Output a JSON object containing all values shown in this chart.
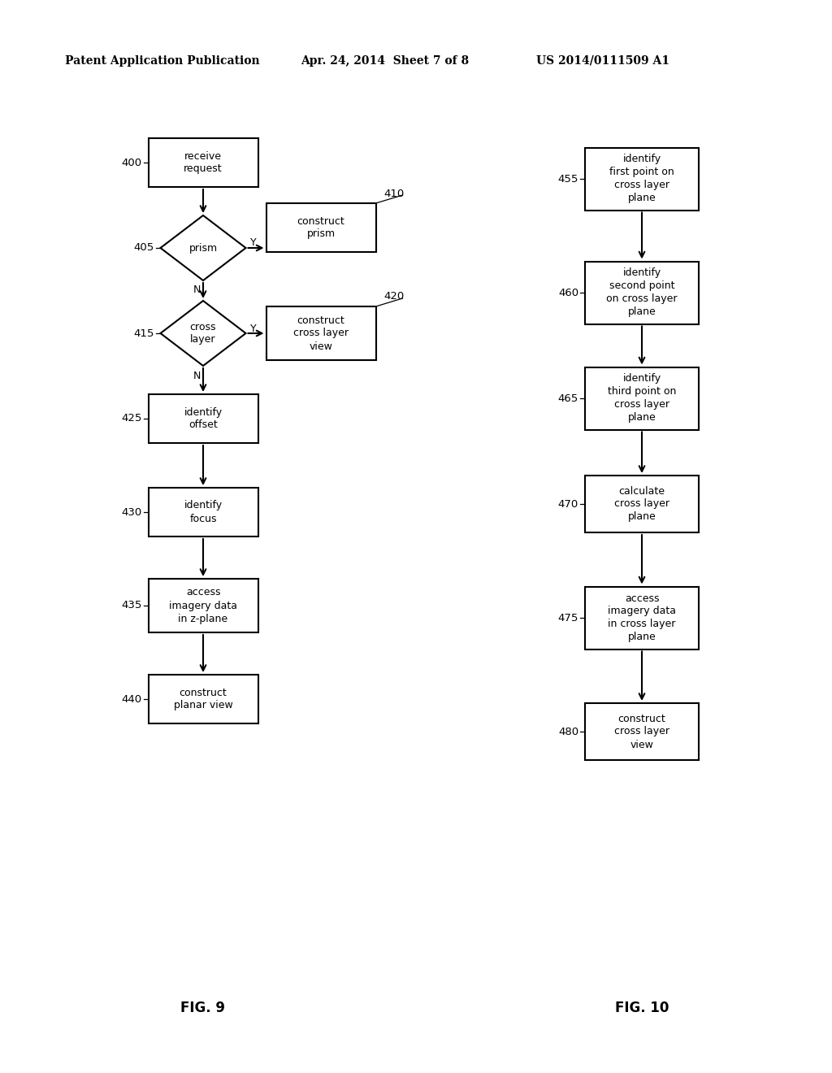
{
  "title_left": "Patent Application Publication",
  "title_mid": "Apr. 24, 2014  Sheet 7 of 8",
  "title_right": "US 2014/0111509 A1",
  "fig9_label": "FIG. 9",
  "fig10_label": "FIG. 10",
  "background": "#ffffff"
}
